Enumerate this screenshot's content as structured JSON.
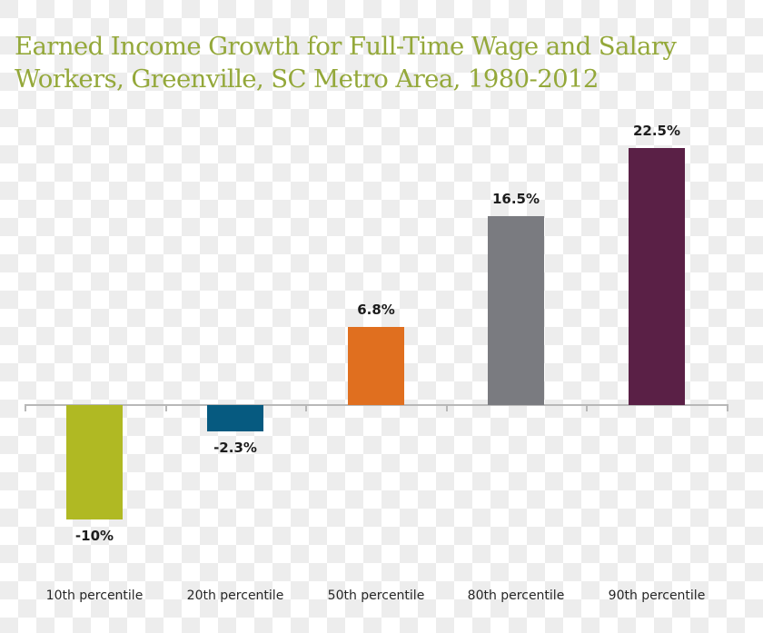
{
  "chart_data": {
    "type": "bar",
    "title": "Earned Income Growth for Full-Time Wage and Salary\nWorkers, Greenville, SC Metro Area, 1980-2012",
    "categories": [
      "10th percentile",
      "20th percentile",
      "50th percentile",
      "80th percentile",
      "90th percentile"
    ],
    "values": [
      -10,
      -2.3,
      6.8,
      16.5,
      22.5
    ],
    "value_labels": [
      "-10%",
      "-2.3%",
      "6.8%",
      "16.5%",
      "22.5%"
    ],
    "colors": [
      "#b0b923",
      "#065a80",
      "#e06f1f",
      "#7a7b80",
      "#5a2046"
    ],
    "xlabel": "",
    "ylabel": "",
    "ylim": [
      -12,
      25
    ],
    "grid": false,
    "legend": null
  },
  "title_color": "#94a83a",
  "axis_color": "#b8b8b8"
}
